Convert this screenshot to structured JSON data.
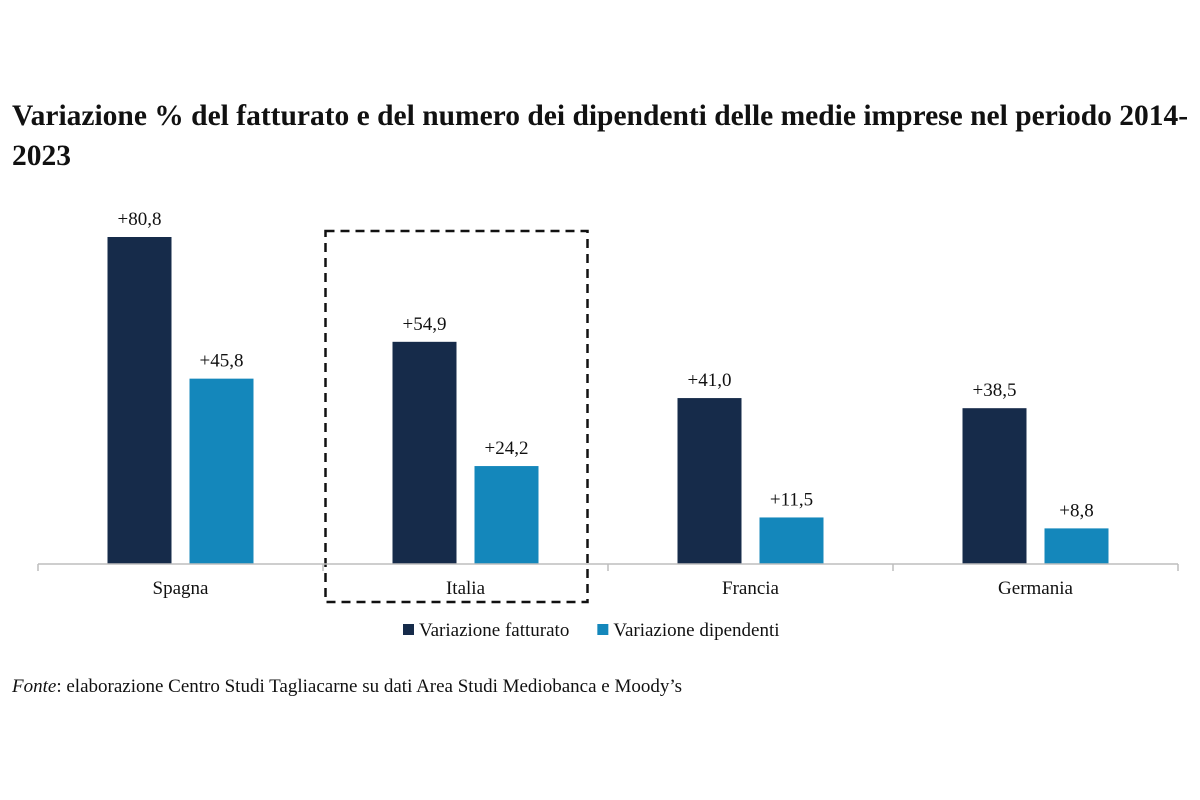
{
  "title": "Variazione % del fatturato e del numero dei dipendenti delle medie imprese nel periodo 2014-2023",
  "source": {
    "label": "Fonte",
    "text": ": elaborazione Centro Studi Tagliacarne su dati Area Studi Mediobanca e Moody’s"
  },
  "chart_data": {
    "type": "bar",
    "categories": [
      "Spagna",
      "Italia",
      "Francia",
      "Germania"
    ],
    "series": [
      {
        "name": "Variazione fatturato",
        "color": "#162b4a",
        "values": [
          80.8,
          54.9,
          41.0,
          38.5
        ],
        "labels": [
          "+80,8",
          "+54,9",
          "+41,0",
          "+38,5"
        ]
      },
      {
        "name": "Variazione dipendenti",
        "color": "#1487bb",
        "values": [
          45.8,
          24.2,
          11.5,
          8.8
        ],
        "labels": [
          "+45,8",
          "+24,2",
          "+11,5",
          "+8,8"
        ]
      }
    ],
    "ylim": [
      0,
      80.8
    ],
    "highlight": {
      "category": "Italia",
      "style": "dashed box"
    },
    "legend": "bottom-center",
    "grid": false
  }
}
